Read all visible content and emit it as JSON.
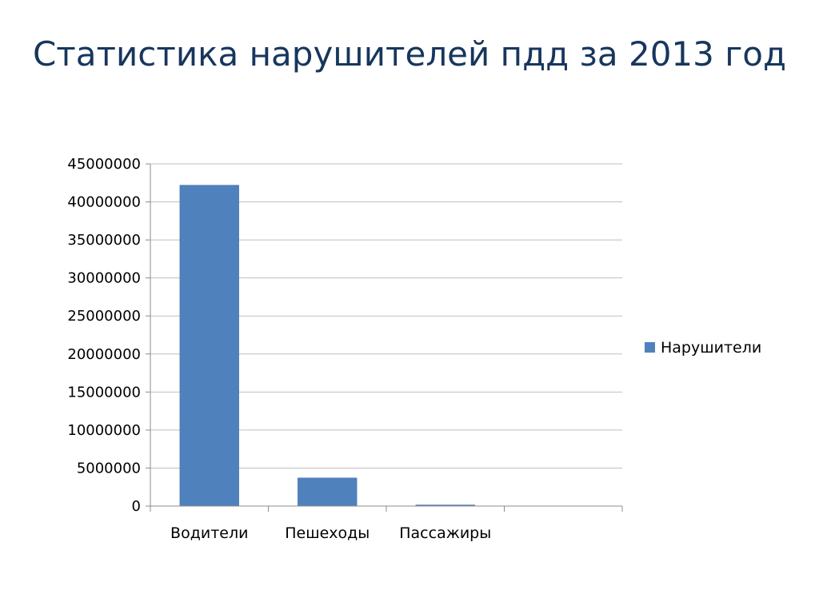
{
  "slide": {
    "title": "Статистика нарушителей пдд за 2013 год"
  },
  "chart_data": {
    "type": "bar",
    "title": "",
    "xlabel": "",
    "ylabel": "",
    "categories": [
      "Водители",
      "Пешеходы",
      "Пассажиры",
      ""
    ],
    "series": [
      {
        "name": "Нарушители",
        "values": [
          42200000,
          3700000,
          150000,
          0
        ]
      }
    ],
    "ylim": [
      0,
      45000000
    ],
    "yticks": [
      "0",
      "5000000",
      "10000000",
      "15000000",
      "20000000",
      "25000000",
      "30000000",
      "35000000",
      "40000000",
      "45000000"
    ],
    "ytick_step": 5000000,
    "grid": true,
    "legend": "right",
    "colors": {
      "bar": "#4f81bd",
      "bar_edge": "#3e6ea6",
      "grid": "#bfbfbf",
      "axis": "#8c8c8c"
    }
  }
}
